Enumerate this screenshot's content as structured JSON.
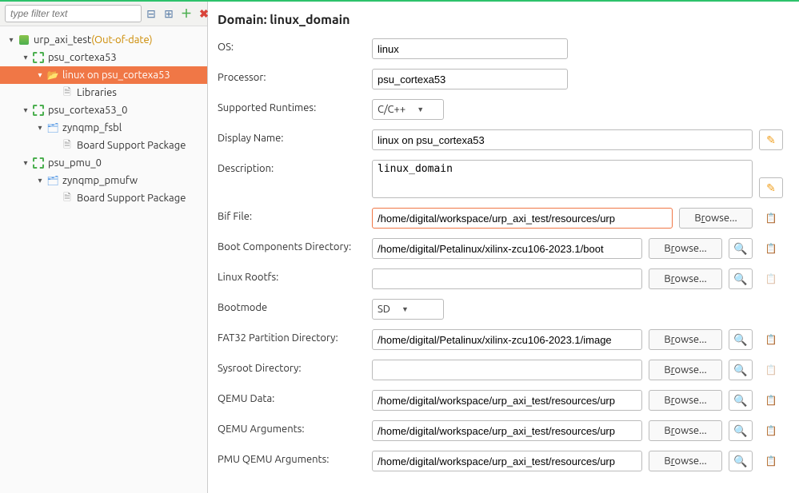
{
  "sidebar": {
    "filter_placeholder": "type filter text",
    "toolbar_icons": [
      "collapse",
      "expand",
      "add",
      "remove"
    ],
    "tree": [
      {
        "indent": 0,
        "twisty": "▾",
        "icon": "file-ic",
        "label": "urp_axi_test",
        "suffix": " (Out-of-date)",
        "suffix_class": "ood"
      },
      {
        "indent": 1,
        "twisty": "▾",
        "icon": "green-chip",
        "label": "psu_cortexa53"
      },
      {
        "indent": 2,
        "twisty": "▾",
        "icon": "folder-open",
        "label": "linux on psu_cortexa53",
        "selected": true
      },
      {
        "indent": 3,
        "twisty": "",
        "icon": "doc-ic",
        "label": "Libraries"
      },
      {
        "indent": 1,
        "twisty": "▾",
        "icon": "green-chip",
        "label": "psu_cortexa53_0"
      },
      {
        "indent": 2,
        "twisty": "▾",
        "icon": "folder-lg",
        "label": "zynqmp_fsbl"
      },
      {
        "indent": 3,
        "twisty": "",
        "icon": "doc-ic",
        "label": "Board Support Package"
      },
      {
        "indent": 1,
        "twisty": "▾",
        "icon": "green-chip",
        "label": "psu_pmu_0"
      },
      {
        "indent": 2,
        "twisty": "▾",
        "icon": "folder-lg",
        "label": "zynqmp_pmufw"
      },
      {
        "indent": 3,
        "twisty": "",
        "icon": "doc-ic",
        "label": "Board Support Package"
      }
    ]
  },
  "main": {
    "title": "Domain: linux_domain",
    "os_label": "OS:",
    "os_value": "linux",
    "processor_label": "Processor:",
    "processor_value": "psu_cortexa53",
    "runtimes_label": "Supported Runtimes:",
    "runtimes_value": "C/C++",
    "display_name_label": "Display Name:",
    "display_name_value": "linux on psu_cortexa53",
    "description_label": "Description:",
    "description_value": "linux_domain",
    "browse_label": "Browse...",
    "bif_label": "Bif File:",
    "bif_value": "/home/digital/workspace/urp_axi_test/resources/urp",
    "bootcomp_label": "Boot Components Directory:",
    "bootcomp_value": "/home/digital/Petalinux/xilinx-zcu106-2023.1/boot",
    "rootfs_label": "Linux Rootfs:",
    "rootfs_value": "",
    "bootmode_label": "Bootmode",
    "bootmode_value": "SD",
    "fat32_label": "FAT32 Partition Directory:",
    "fat32_value": "/home/digital/Petalinux/xilinx-zcu106-2023.1/image",
    "sysroot_label": "Sysroot Directory:",
    "sysroot_value": "",
    "qemudata_label": "QEMU Data:",
    "qemudata_value": "/home/digital/workspace/urp_axi_test/resources/urp",
    "qemuargs_label": "QEMU Arguments:",
    "qemuargs_value": "/home/digital/workspace/urp_axi_test/resources/urp",
    "pmuqemu_label": "PMU QEMU Arguments:",
    "pmuqemu_value": "/home/digital/workspace/urp_axi_test/resources/urp"
  },
  "colors": {
    "selection": "#f07746",
    "accent_green": "#2dc26b"
  }
}
